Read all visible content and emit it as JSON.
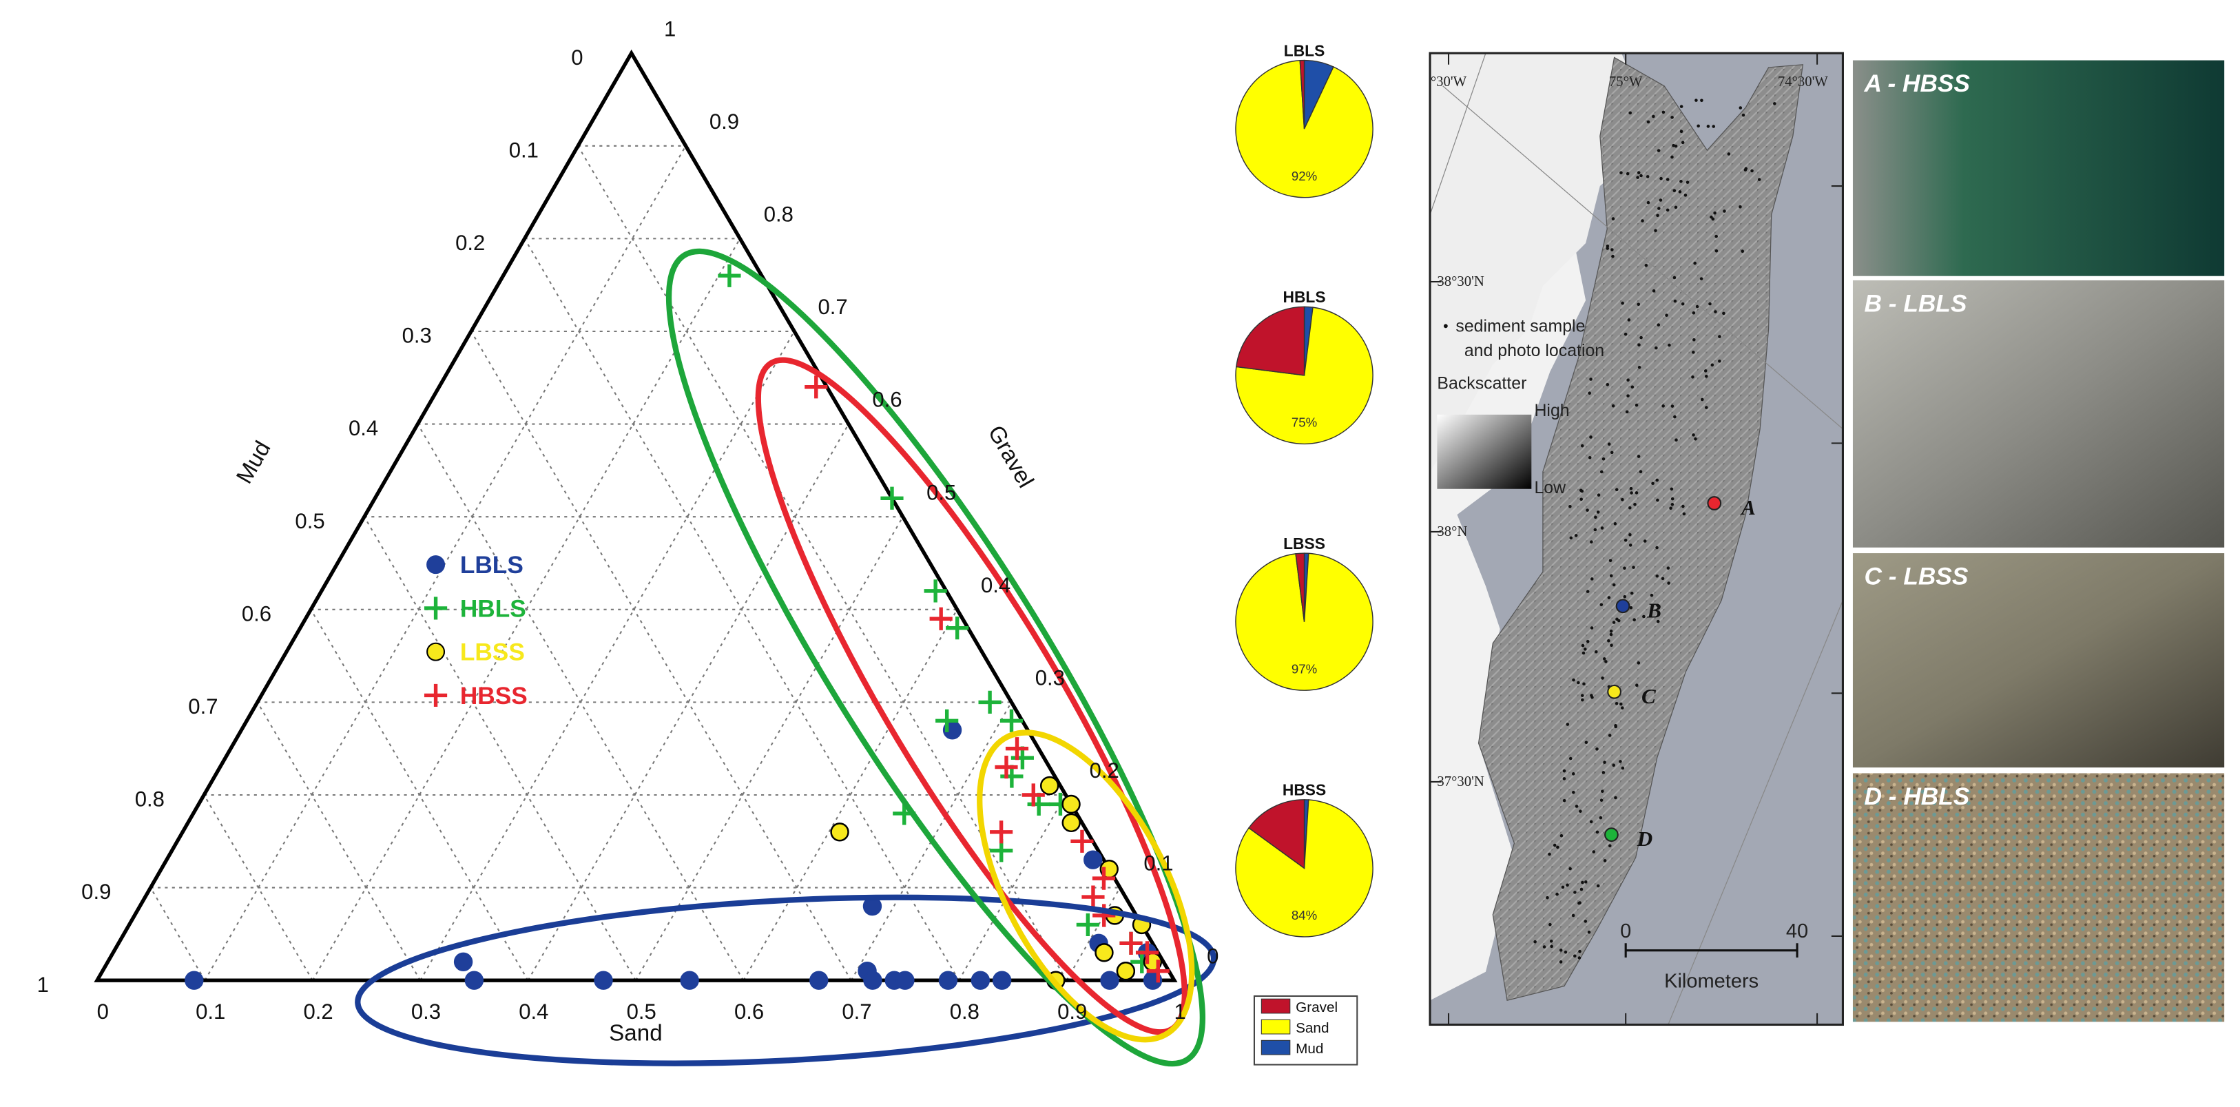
{
  "chart_data": [
    {
      "type": "ternary",
      "mud_label": "Mud",
      "sand_label": "Sand",
      "gravel_label": "Gravel",
      "sand_ticks": [
        0,
        0.1,
        0.2,
        0.3,
        0.4,
        0.5,
        0.6,
        0.7,
        0.8,
        0.9,
        1
      ],
      "mud_ticks": [
        0,
        0.1,
        0.2,
        0.3,
        0.4,
        0.5,
        0.6,
        0.7,
        0.8,
        0.9,
        1
      ],
      "gravel_ticks": [
        0,
        0.1,
        0.2,
        0.3,
        0.4,
        0.5,
        0.6,
        0.7,
        0.8,
        0.9,
        1
      ],
      "grid": true,
      "series": [
        {
          "name": "LBLS",
          "marker": "circle",
          "color": "#1f3f9a",
          "sand": [
            0.09,
            0.33,
            0.35,
            0.47,
            0.55,
            0.67,
            0.71,
            0.72,
            0.74,
            0.75,
            0.79,
            0.82,
            0.84,
            0.68,
            0.66,
            0.91,
            0.95,
            0.96,
            0.86,
            0.94,
            0.98
          ],
          "gravel": [
            0,
            0.02,
            0,
            0,
            0,
            0,
            0.01,
            0,
            0,
            0,
            0,
            0,
            0,
            0.08,
            0.27,
            0.04,
            0.01,
            0.03,
            0.13,
            0,
            0
          ]
        },
        {
          "name": "HBLS",
          "marker": "plus",
          "color": "#1db33a",
          "sand": [
            0.21,
            0.48,
            0.57,
            0.61,
            0.68,
            0.71,
            0.65,
            0.74,
            0.74,
            0.78,
            0.66,
            0.8,
            0.77,
            0.89,
            0.94,
            0.96
          ],
          "gravel": [
            0.76,
            0.52,
            0.42,
            0.38,
            0.3,
            0.28,
            0.28,
            0.24,
            0.22,
            0.19,
            0.18,
            0.19,
            0.14,
            0.06,
            0.04,
            0.02
          ]
        },
        {
          "name": "LBSS",
          "marker": "circle",
          "color": "#f7e81c",
          "sand": [
            0.61,
            0.78,
            0.81,
            0.82,
            0.91,
            0.94,
            0.89,
            0.95,
            0.92,
            0.97,
            0.88
          ],
          "gravel": [
            0.16,
            0.21,
            0.19,
            0.17,
            0.07,
            0.06,
            0,
            0.01,
            0.03,
            0.02,
            0.12
          ]
        },
        {
          "name": "HBSS",
          "marker": "plus",
          "color": "#e8262f",
          "sand": [
            0.35,
            0.59,
            0.73,
            0.73,
            0.77,
            0.84,
            0.88,
            0.88,
            0.76,
            0.94,
            0.96,
            0.98,
            0.9
          ],
          "gravel": [
            0.64,
            0.39,
            0.25,
            0.23,
            0.2,
            0.15,
            0.11,
            0.09,
            0.16,
            0.04,
            0.03,
            0.01,
            0.07
          ]
        }
      ]
    },
    {
      "type": "pies",
      "categories": [
        "Gravel",
        "Sand",
        "Mud"
      ],
      "colors": [
        "#c0132b",
        "#ffff00",
        "#1f4fa8"
      ],
      "pies": [
        {
          "title": "LBLS",
          "values": [
            1,
            92,
            7
          ],
          "value_labels": [
            null,
            "92%",
            null
          ]
        },
        {
          "title": "HBLS",
          "values": [
            23,
            75,
            2
          ],
          "value_labels": [
            null,
            "75%",
            null
          ]
        },
        {
          "title": "LBSS",
          "values": [
            2,
            97,
            1
          ],
          "value_labels": [
            null,
            "97%",
            null
          ]
        },
        {
          "title": "HBSS",
          "values": [
            15,
            84,
            1
          ],
          "value_labels": [
            null,
            "84%",
            null
          ]
        }
      ]
    }
  ],
  "map": {
    "lon_labels": [
      "°30'W",
      "75°W",
      "74°30'W"
    ],
    "lat_labels": [
      "38°30'N",
      "38°N",
      "37°30'N"
    ],
    "legend_text": [
      "sediment sample",
      "and photo location"
    ],
    "backscatter": "Backscatter",
    "high": "High",
    "low": "Low",
    "scale_labels": [
      "0",
      "40"
    ],
    "scale_unit": "Kilometers",
    "sites": [
      "A",
      "B",
      "C",
      "D"
    ]
  },
  "photos": [
    "A - HBSS",
    "B - LBLS",
    "C - LBSS",
    "D - HBLS"
  ]
}
